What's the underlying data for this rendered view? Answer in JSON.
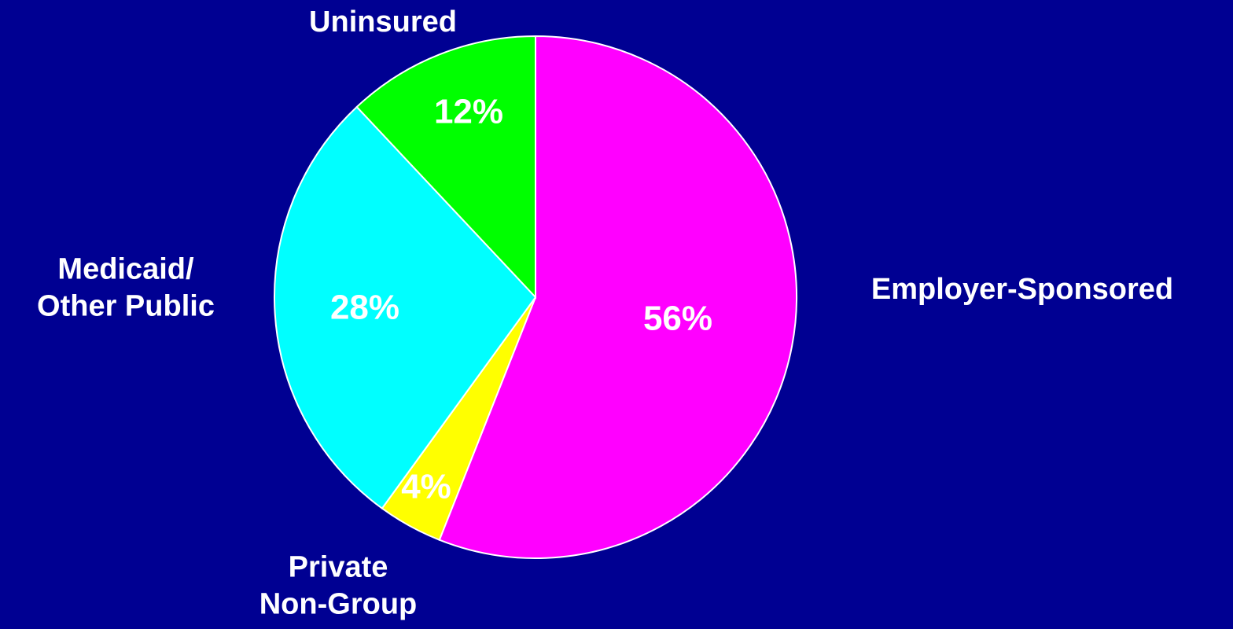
{
  "chart_data": {
    "type": "pie",
    "categories": [
      "Employer-Sponsored",
      "Private\nNon-Group",
      "Medicaid/\nOther Public",
      "Uninsured"
    ],
    "values": [
      56,
      4,
      28,
      12
    ],
    "value_labels": [
      "56%",
      "4%",
      "28%",
      "12%"
    ],
    "colors": [
      "#ff00ff",
      "#ffff00",
      "#00ffff",
      "#00ff00"
    ],
    "start_angle": 0,
    "direction": "clockwise"
  }
}
